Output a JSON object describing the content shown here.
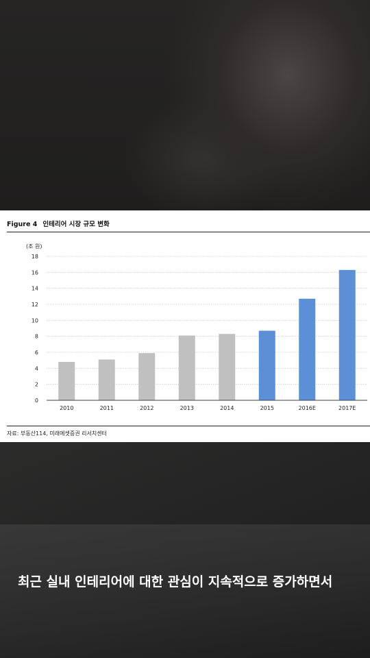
{
  "figure": {
    "label": "Figure 4",
    "title": "인테리어 시장 규모 변화",
    "source": "자료: 부동산114, 미래에셋증권 리서치센터"
  },
  "chart_data": {
    "type": "bar",
    "ylabel": "(조 원)",
    "ylim": [
      0,
      18
    ],
    "yticks": [
      0,
      2,
      4,
      6,
      8,
      10,
      12,
      14,
      16,
      18
    ],
    "grid": true,
    "categories": [
      "2010",
      "2011",
      "2012",
      "2013",
      "2014",
      "2015",
      "2016E",
      "2017E"
    ],
    "values": [
      4.8,
      5.1,
      5.9,
      8.1,
      8.3,
      8.7,
      12.7,
      16.3
    ],
    "bar_colors": [
      "#c0c0c0",
      "#c0c0c0",
      "#c0c0c0",
      "#c0c0c0",
      "#c0c0c0",
      "#5b8fd6",
      "#5b8fd6",
      "#5b8fd6"
    ]
  },
  "caption": "최근 실내 인테리어에 대한 관심이 지속적으로 증가하면서",
  "colors": {
    "actual_bar": "#c0c0c0",
    "forecast_bar": "#5b8fd6",
    "grid": "#c8c8c8"
  }
}
